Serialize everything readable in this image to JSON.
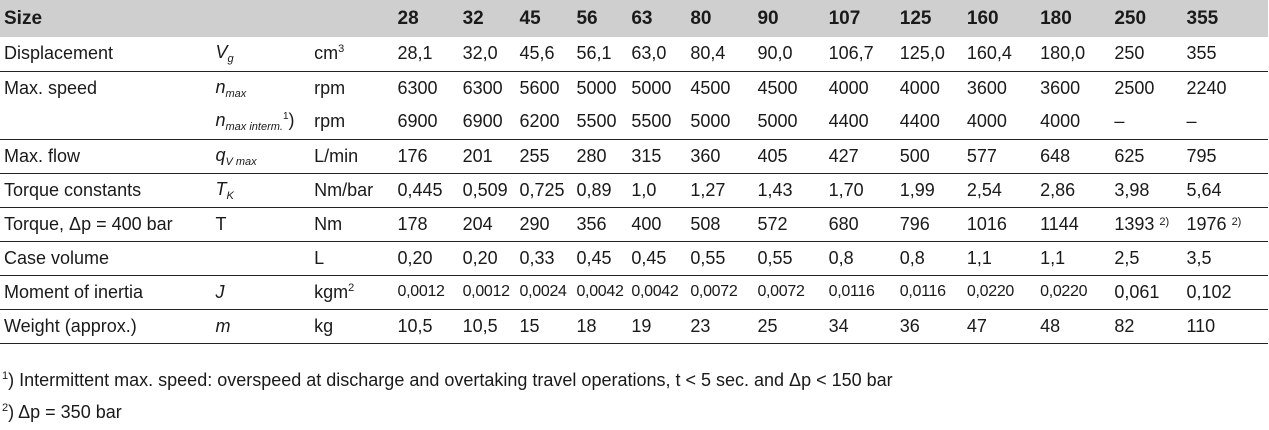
{
  "table": {
    "header": {
      "label": "Size",
      "sizes": [
        "28",
        "32",
        "45",
        "56",
        "63",
        "80",
        "90",
        "107",
        "125",
        "160",
        "180",
        "250",
        "355"
      ]
    },
    "rows": [
      {
        "label": "Displacement",
        "symbol": "V",
        "symbol_sub": "g",
        "unit": "cm",
        "unit_sup": "3",
        "values": [
          "28,1",
          "32,0",
          "45,6",
          "56,1",
          "63,0",
          "80,4",
          "90,0",
          "106,7",
          "125,0",
          "160,4",
          "180,0",
          "250",
          "355"
        ]
      },
      {
        "label": "Max. speed",
        "symbol": "n",
        "symbol_sub": "max",
        "unit": "rpm",
        "values": [
          "6300",
          "6300",
          "5600",
          "5000",
          "5000",
          "4500",
          "4500",
          "4000",
          "4000",
          "3600",
          "3600",
          "2500",
          "2240"
        ]
      },
      {
        "label": "",
        "symbol": "n",
        "symbol_sub": "max interm.",
        "symbol_note": "1",
        "symbol_paren": ")",
        "unit": "rpm",
        "values": [
          "6900",
          "6900",
          "6200",
          "5500",
          "5500",
          "5000",
          "5000",
          "4400",
          "4400",
          "4000",
          "4000",
          "–",
          "–"
        ]
      },
      {
        "label": "Max. flow",
        "symbol": "q",
        "symbol_sub": "V max",
        "unit": "L/min",
        "values": [
          "176",
          "201",
          "255",
          "280",
          "315",
          "360",
          "405",
          "427",
          "500",
          "577",
          "648",
          "625",
          "795"
        ]
      },
      {
        "label": "Torque constants",
        "symbol": "T",
        "symbol_sub": "K",
        "unit": "Nm/bar",
        "values": [
          "0,445",
          "0,509",
          "0,725",
          "0,89",
          "1,0",
          "1,27",
          "1,43",
          "1,70",
          "1,99",
          "2,54",
          "2,86",
          "3,98",
          "5,64"
        ]
      },
      {
        "label": "Torque,  Δp = 400 bar",
        "symbol": "T",
        "unit": "Nm",
        "values": [
          "178",
          "204",
          "290",
          "356",
          "400",
          "508",
          "572",
          "680",
          "796",
          "1016",
          "1144",
          "1393",
          "1976"
        ],
        "value_notes": [
          "",
          "",
          "",
          "",
          "",
          "",
          "",
          "",
          "",
          "",
          "",
          "2)",
          "2)"
        ]
      },
      {
        "label": "Case volume",
        "symbol": "",
        "unit": "L",
        "values": [
          "0,20",
          "0,20",
          "0,33",
          "0,45",
          "0,45",
          "0,55",
          "0,55",
          "0,8",
          "0,8",
          "1,1",
          "1,1",
          "2,5",
          "3,5"
        ]
      },
      {
        "label": "Moment of inertia",
        "symbol": "J",
        "unit": "kgm",
        "unit_sup": "2",
        "values": [
          "0,0012",
          "0,0012",
          "0,0024",
          "0,0042",
          "0,0042",
          "0,0072",
          "0,0072",
          "0,0116",
          "0,0116",
          "0,0220",
          "0,0220",
          "0,061",
          "0,102"
        ]
      },
      {
        "label": "Weight (approx.)",
        "symbol": "m",
        "unit": "kg",
        "values": [
          "10,5",
          "10,5",
          "15",
          "18",
          "19",
          "23",
          "25",
          "34",
          "36",
          "47",
          "48",
          "82",
          "110"
        ]
      }
    ]
  },
  "footnotes": [
    {
      "mark": "1",
      "text": ") Intermittent max. speed: overspeed at discharge and overtaking travel operations, t < 5 sec. and Δp < 150 bar"
    },
    {
      "mark": "2",
      "text": ") Δp = 350 bar"
    }
  ]
}
